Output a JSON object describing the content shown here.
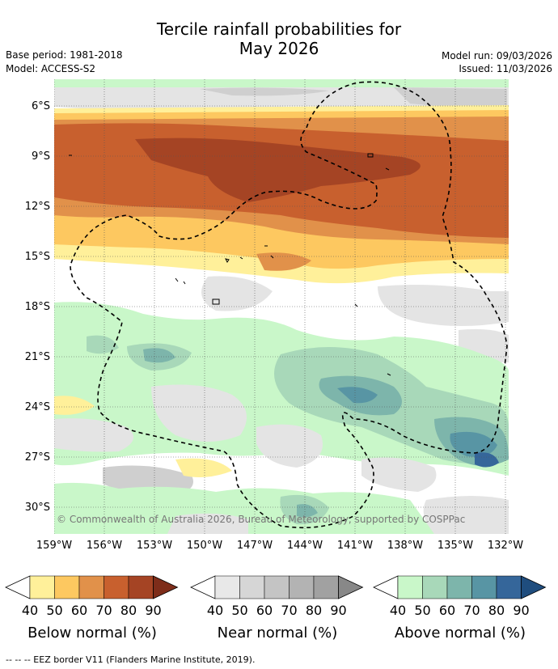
{
  "title_line1": "Tercile rainfall probabilities for",
  "title_line2": "May 2026",
  "base_period": "Base period: 1981-2018",
  "model": "Model: ACCESS-S2",
  "model_run": "Model run: 09/03/2026",
  "issued": "Issued: 11/03/2026",
  "copyright": "© Commonwealth of Australia 2026, Bureau of Meteorology, supported by COSPPac",
  "lat_ticks": [
    "6°S",
    "9°S",
    "12°S",
    "15°S",
    "18°S",
    "21°S",
    "24°S",
    "27°S",
    "30°S"
  ],
  "lon_ticks": [
    "159°W",
    "156°W",
    "153°W",
    "150°W",
    "147°W",
    "144°W",
    "141°W",
    "138°W",
    "135°W",
    "132°W"
  ],
  "colorbars": [
    {
      "label": "Below normal (%)",
      "ticks": [
        "40",
        "50",
        "60",
        "70",
        "80",
        "90"
      ],
      "colors": [
        "#fff09a",
        "#fdc860",
        "#e1914a",
        "#c8602e",
        "#a54424",
        "#7e2d1a"
      ]
    },
    {
      "label": "Near normal (%)",
      "ticks": [
        "40",
        "50",
        "60",
        "70",
        "80",
        "90"
      ],
      "colors": [
        "#e8e8e8",
        "#d6d6d6",
        "#c4c4c4",
        "#b3b3b3",
        "#a1a1a1",
        "#888888"
      ]
    },
    {
      "label": "Above normal (%)",
      "ticks": [
        "40",
        "50",
        "60",
        "70",
        "80",
        "90"
      ],
      "colors": [
        "#c9f7c9",
        "#a8d8b9",
        "#7db5ab",
        "#5895a4",
        "#35669a",
        "#1f4d7e"
      ]
    }
  ],
  "eez_legend": "--  --  -- EEZ border V11 (Flanders Marine Institute, 2019).",
  "colors": {
    "below": [
      "#fff09a",
      "#fdc860",
      "#e1914a",
      "#c8602e",
      "#a54424"
    ],
    "near": [
      "#e4e4e4",
      "#cfcfcf"
    ],
    "above": [
      "#c9f7c9",
      "#a8d8b9",
      "#7db5ab",
      "#5895a4",
      "#35669a"
    ]
  }
}
